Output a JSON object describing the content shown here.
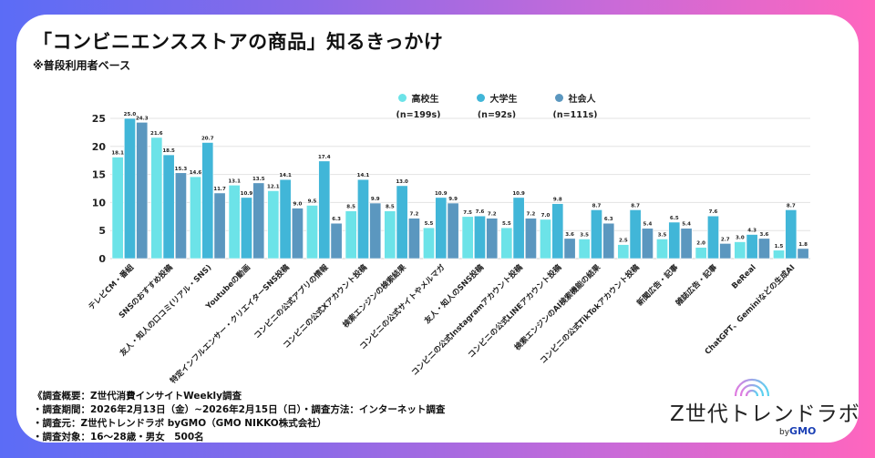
{
  "title": "「コンビニエンスストアの商品」知るきっかけ",
  "subtitle": "※普段利用者ベース",
  "legend": [
    {
      "label": "高校生",
      "n": "(n=199s)",
      "color": "#6ce3e8"
    },
    {
      "label": "大学生",
      "n": "(n=92s)",
      "color": "#41b6d8"
    },
    {
      "label": "社会人",
      "n": "(n=111s)",
      "color": "#5b97bf"
    }
  ],
  "chart_data": {
    "type": "bar",
    "title": "「コンビニエンスストアの商品」知るきっかけ",
    "xlabel": "",
    "ylabel": "",
    "ylim": [
      0,
      25
    ],
    "yticks": [
      0,
      5,
      10,
      15,
      20,
      25
    ],
    "grid": true,
    "legend_position": "top-center",
    "categories": [
      "テレビCM・番組",
      "SNSのおすすめ投稿",
      "友人・知人の口コミ(リアル・SNS)",
      "Youtubeの動画",
      "特定インフルエンサー・クリエイターSNS投稿",
      "コンビニの公式アプリの情報",
      "コンビニの公式Xアカウント投稿",
      "検索エンジンの検索結果",
      "コンビニの公式サイトやメルマガ",
      "友人・知人のSNS投稿",
      "コンビニの公式Instagramアカウント投稿",
      "コンビニの公式LINEアカウント投稿",
      "検索エンジンのAI検索機能の結果",
      "コンビニの公式TikTokアカウント投稿",
      "新聞広告・記事",
      "雑誌広告・記事",
      "BeReal",
      "ChatGPT、Geminiなどの生成AI"
    ],
    "series": [
      {
        "name": "高校生",
        "values": [
          18.1,
          21.6,
          14.6,
          13.1,
          12.1,
          9.5,
          8.5,
          8.5,
          5.5,
          7.5,
          5.5,
          7.0,
          3.5,
          2.5,
          3.5,
          2.0,
          3.0,
          1.5
        ]
      },
      {
        "name": "大学生",
        "values": [
          25.0,
          18.5,
          20.7,
          10.9,
          14.1,
          17.4,
          14.1,
          13.0,
          10.9,
          7.6,
          10.9,
          9.8,
          8.7,
          8.7,
          6.5,
          7.6,
          4.3,
          8.7
        ]
      },
      {
        "name": "社会人",
        "values": [
          24.3,
          15.3,
          11.7,
          13.5,
          9.0,
          6.3,
          9.9,
          7.2,
          9.9,
          7.2,
          7.2,
          3.6,
          6.3,
          5.4,
          5.4,
          2.7,
          3.6,
          1.8
        ]
      }
    ]
  },
  "footer": [
    "《調査概要：Z世代消費インサイトWeekly調査",
    "・調査期間：2026年2月13日（金）~2026年2月15日（日）・調査方法：インターネット調査",
    "・調査元：Z世代トレンドラボ byGMO（GMO NIKKO株式会社）",
    "・調査対象：16〜28歳・男女　500名"
  ],
  "logo": {
    "text": "Z世代トレンドラボ",
    "by": "by",
    "brand": "GMO"
  }
}
